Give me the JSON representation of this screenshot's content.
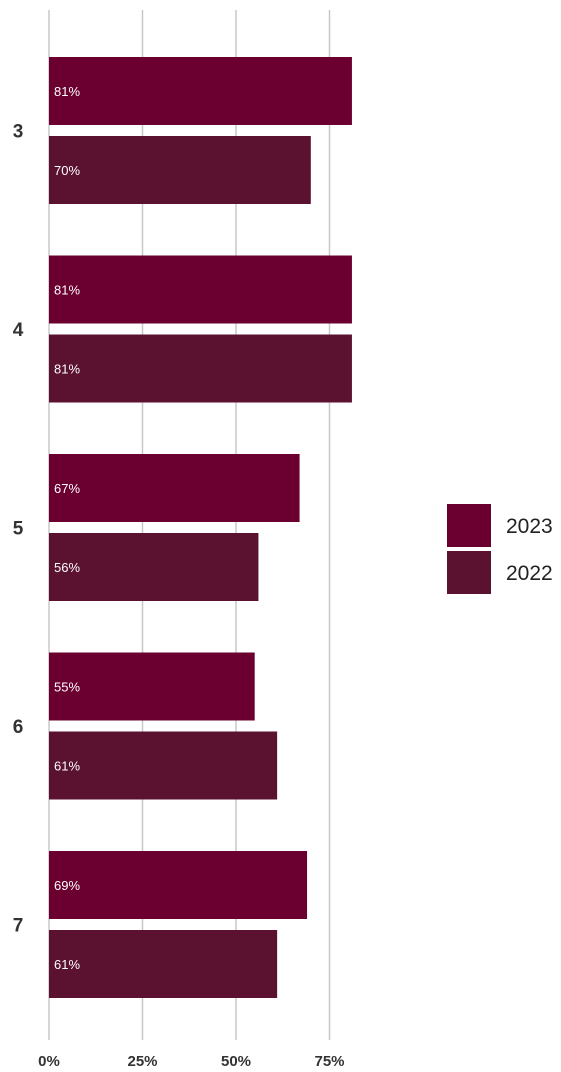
{
  "chart_data": {
    "type": "bar",
    "orientation": "horizontal",
    "categories": [
      "3",
      "4",
      "5",
      "6",
      "7"
    ],
    "series": [
      {
        "name": "2023",
        "color": "#6b0030",
        "values": [
          81,
          81,
          67,
          55,
          69
        ],
        "labels": [
          "81%",
          "81%",
          "67%",
          "55%",
          "69%"
        ]
      },
      {
        "name": "2022",
        "color": "#5a1230",
        "values": [
          70,
          81,
          56,
          61,
          61
        ],
        "labels": [
          "70%",
          "81%",
          "56%",
          "61%",
          "61%"
        ]
      }
    ],
    "x_ticks": [
      0,
      25,
      50,
      75
    ],
    "x_tick_labels": [
      "0%",
      "25%",
      "50%",
      "75%"
    ],
    "xlim": [
      0,
      100
    ],
    "grid": true,
    "legend_position": "right"
  }
}
